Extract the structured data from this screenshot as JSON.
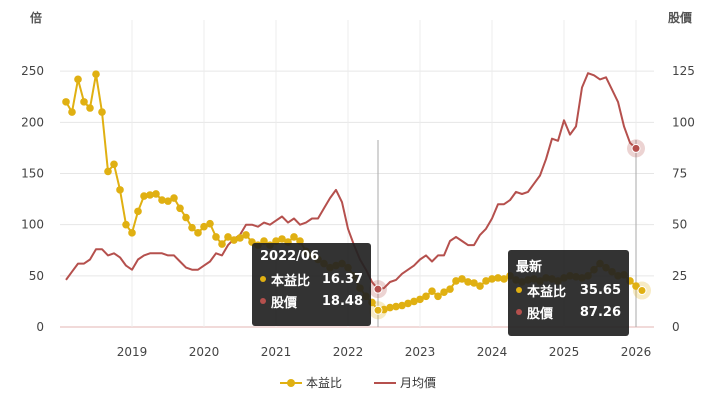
{
  "chart_data": {
    "type": "line",
    "left_axis_label": "倍",
    "right_axis_label": "股價",
    "left_ticks": [
      "0",
      "50",
      "100",
      "150",
      "200",
      "250"
    ],
    "right_ticks": [
      "0",
      "25",
      "50",
      "75",
      "100",
      "125"
    ],
    "x_ticks": [
      "2019",
      "2020",
      "2021",
      "2022",
      "2023",
      "2024",
      "2025",
      "2026"
    ],
    "left_ylim": [
      0,
      300
    ],
    "right_ylim": [
      0,
      150
    ],
    "xlim": [
      "2018-01",
      "2026-04"
    ],
    "grid": true,
    "colors": {
      "pe": "#e0b012",
      "price": "#b5504d"
    },
    "series": [
      {
        "name": "本益比",
        "axis": "left",
        "points": [
          [
            "2018-02",
            220
          ],
          [
            "2018-03",
            210
          ],
          [
            "2018-04",
            242
          ],
          [
            "2018-05",
            220
          ],
          [
            "2018-06",
            214
          ],
          [
            "2018-07",
            247
          ],
          [
            "2018-08",
            210
          ],
          [
            "2018-09",
            152
          ],
          [
            "2018-10",
            159
          ],
          [
            "2018-11",
            134
          ],
          [
            "2018-12",
            100
          ],
          [
            "2019-01",
            92
          ],
          [
            "2019-02",
            113
          ],
          [
            "2019-03",
            128
          ],
          [
            "2019-04",
            129
          ],
          [
            "2019-05",
            130
          ],
          [
            "2019-06",
            124
          ],
          [
            "2019-07",
            123
          ],
          [
            "2019-08",
            126
          ],
          [
            "2019-09",
            116
          ],
          [
            "2019-10",
            107
          ],
          [
            "2019-11",
            97
          ],
          [
            "2019-12",
            92
          ],
          [
            "2020-01",
            98
          ],
          [
            "2020-02",
            101
          ],
          [
            "2020-03",
            88
          ],
          [
            "2020-04",
            81
          ],
          [
            "2020-05",
            88
          ],
          [
            "2020-06",
            85
          ],
          [
            "2020-07",
            87
          ],
          [
            "2020-08",
            90
          ],
          [
            "2020-09",
            83
          ],
          [
            "2020-10",
            80
          ],
          [
            "2020-11",
            84
          ],
          [
            "2020-12",
            80
          ],
          [
            "2021-01",
            84
          ],
          [
            "2021-02",
            86
          ],
          [
            "2021-03",
            83
          ],
          [
            "2021-04",
            88
          ],
          [
            "2021-05",
            84
          ],
          [
            "2021-06",
            74
          ],
          [
            "2021-07",
            70
          ],
          [
            "2021-08",
            66
          ],
          [
            "2021-09",
            62
          ],
          [
            "2021-10",
            58
          ],
          [
            "2021-11",
            60
          ],
          [
            "2021-12",
            62
          ],
          [
            "2022-01",
            58
          ],
          [
            "2022-02",
            50
          ],
          [
            "2022-03",
            38
          ],
          [
            "2022-04",
            30
          ],
          [
            "2022-05",
            24
          ],
          [
            "2022-06",
            16.37
          ],
          [
            "2022-07",
            17
          ],
          [
            "2022-08",
            19
          ],
          [
            "2022-09",
            20
          ],
          [
            "2022-10",
            21
          ],
          [
            "2022-11",
            23
          ],
          [
            "2022-12",
            25
          ],
          [
            "2023-01",
            27
          ],
          [
            "2023-02",
            30
          ],
          [
            "2023-03",
            35
          ],
          [
            "2023-04",
            30
          ],
          [
            "2023-05",
            34
          ],
          [
            "2023-06",
            37
          ],
          [
            "2023-07",
            45
          ],
          [
            "2023-08",
            47
          ],
          [
            "2023-09",
            44
          ],
          [
            "2023-10",
            43
          ],
          [
            "2023-11",
            40
          ],
          [
            "2023-12",
            45
          ],
          [
            "2024-01",
            47
          ],
          [
            "2024-02",
            48
          ],
          [
            "2024-03",
            47
          ],
          [
            "2024-04",
            50
          ],
          [
            "2024-05",
            46
          ],
          [
            "2024-06",
            44
          ],
          [
            "2024-07",
            46
          ],
          [
            "2024-08",
            47
          ],
          [
            "2024-09",
            45
          ],
          [
            "2024-10",
            48
          ],
          [
            "2024-11",
            47
          ],
          [
            "2024-12",
            45
          ],
          [
            "2025-01",
            48
          ],
          [
            "2025-02",
            50
          ],
          [
            "2025-03",
            49
          ],
          [
            "2025-04",
            48
          ],
          [
            "2025-05",
            50
          ],
          [
            "2025-06",
            56
          ],
          [
            "2025-07",
            62
          ],
          [
            "2025-08",
            58
          ],
          [
            "2025-09",
            54
          ],
          [
            "2025-10",
            50
          ],
          [
            "2025-11",
            51
          ],
          [
            "2025-12",
            45
          ],
          [
            "2026-01",
            40
          ],
          [
            "2026-02",
            35.65
          ]
        ]
      },
      {
        "name": "月均價",
        "axis": "right",
        "points": [
          [
            "2018-02",
            23
          ],
          [
            "2018-03",
            27
          ],
          [
            "2018-04",
            31
          ],
          [
            "2018-05",
            31
          ],
          [
            "2018-06",
            33
          ],
          [
            "2018-07",
            38
          ],
          [
            "2018-08",
            38
          ],
          [
            "2018-09",
            35
          ],
          [
            "2018-10",
            36
          ],
          [
            "2018-11",
            34
          ],
          [
            "2018-12",
            30
          ],
          [
            "2019-01",
            28
          ],
          [
            "2019-02",
            33
          ],
          [
            "2019-03",
            35
          ],
          [
            "2019-04",
            36
          ],
          [
            "2019-05",
            36
          ],
          [
            "2019-06",
            36
          ],
          [
            "2019-07",
            35
          ],
          [
            "2019-08",
            35
          ],
          [
            "2019-09",
            32
          ],
          [
            "2019-10",
            29
          ],
          [
            "2019-11",
            28
          ],
          [
            "2019-12",
            28
          ],
          [
            "2020-01",
            30
          ],
          [
            "2020-02",
            32
          ],
          [
            "2020-03",
            36
          ],
          [
            "2020-04",
            35
          ],
          [
            "2020-05",
            40
          ],
          [
            "2020-06",
            43
          ],
          [
            "2020-07",
            45
          ],
          [
            "2020-08",
            50
          ],
          [
            "2020-09",
            50
          ],
          [
            "2020-10",
            49
          ],
          [
            "2020-11",
            51
          ],
          [
            "2020-12",
            50
          ],
          [
            "2021-01",
            52
          ],
          [
            "2021-02",
            54
          ],
          [
            "2021-03",
            51
          ],
          [
            "2021-04",
            53
          ],
          [
            "2021-05",
            50
          ],
          [
            "2021-06",
            51
          ],
          [
            "2021-07",
            53
          ],
          [
            "2021-08",
            53
          ],
          [
            "2021-09",
            58
          ],
          [
            "2021-10",
            63
          ],
          [
            "2021-11",
            67
          ],
          [
            "2021-12",
            61
          ],
          [
            "2022-01",
            48
          ],
          [
            "2022-02",
            40
          ],
          [
            "2022-03",
            33
          ],
          [
            "2022-04",
            28
          ],
          [
            "2022-05",
            22
          ],
          [
            "2022-06",
            18.48
          ],
          [
            "2022-07",
            19
          ],
          [
            "2022-08",
            22
          ],
          [
            "2022-09",
            23
          ],
          [
            "2022-10",
            26
          ],
          [
            "2022-11",
            28
          ],
          [
            "2022-12",
            30
          ],
          [
            "2023-01",
            33
          ],
          [
            "2023-02",
            35
          ],
          [
            "2023-03",
            32
          ],
          [
            "2023-04",
            35
          ],
          [
            "2023-05",
            35
          ],
          [
            "2023-06",
            42
          ],
          [
            "2023-07",
            44
          ],
          [
            "2023-08",
            42
          ],
          [
            "2023-09",
            40
          ],
          [
            "2023-10",
            40
          ],
          [
            "2023-11",
            45
          ],
          [
            "2023-12",
            48
          ],
          [
            "2024-01",
            53
          ],
          [
            "2024-02",
            60
          ],
          [
            "2024-03",
            60
          ],
          [
            "2024-04",
            62
          ],
          [
            "2024-05",
            66
          ],
          [
            "2024-06",
            65
          ],
          [
            "2024-07",
            66
          ],
          [
            "2024-08",
            70
          ],
          [
            "2024-09",
            74
          ],
          [
            "2024-10",
            82
          ],
          [
            "2024-11",
            92
          ],
          [
            "2024-12",
            91
          ],
          [
            "2025-01",
            101
          ],
          [
            "2025-02",
            94
          ],
          [
            "2025-03",
            98
          ],
          [
            "2025-04",
            117
          ],
          [
            "2025-05",
            124
          ],
          [
            "2025-06",
            123
          ],
          [
            "2025-07",
            121
          ],
          [
            "2025-08",
            122
          ],
          [
            "2025-09",
            116
          ],
          [
            "2025-10",
            110
          ],
          [
            "2025-11",
            98
          ],
          [
            "2025-12",
            90
          ],
          [
            "2026-01",
            87.26
          ]
        ]
      }
    ],
    "highlight_points": [
      {
        "series": "本益比",
        "x": "2022-06",
        "y": 16.37
      },
      {
        "series": "月均價",
        "x": "2022-06",
        "y": 18.48
      },
      {
        "series": "本益比",
        "x": "2026-02",
        "y": 35.65
      },
      {
        "series": "月均價",
        "x": "2026-01",
        "y": 87.26
      }
    ],
    "crosshairs": [
      "2022-06",
      "2026-01"
    ]
  },
  "tooltips": {
    "hover": {
      "title": "2022/06",
      "pe_label": "本益比",
      "pe_value": "16.37",
      "price_label": "股價",
      "price_value": "18.48"
    },
    "latest": {
      "title": "最新",
      "pe_label": "本益比",
      "pe_value": "35.65",
      "price_label": "股價",
      "price_value": "87.26"
    }
  },
  "legend": {
    "pe_label": "本益比",
    "price_label": "月均價"
  }
}
